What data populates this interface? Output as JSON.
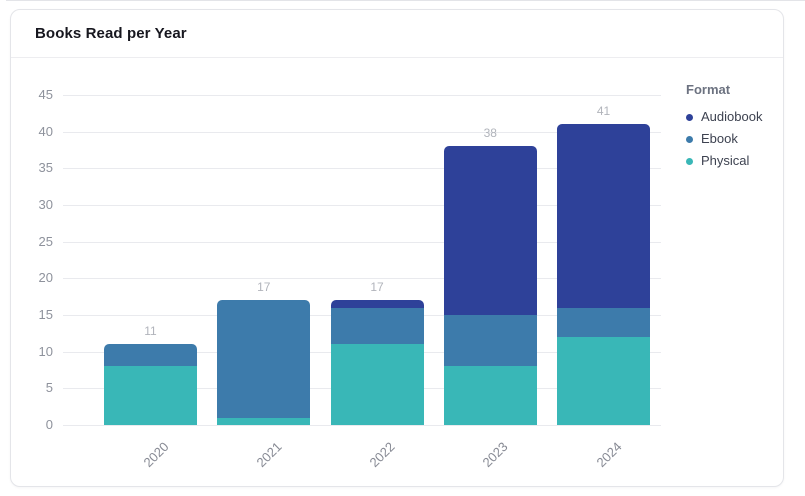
{
  "card": {
    "title": "Books Read per Year"
  },
  "legend": {
    "title": "Format",
    "items": [
      {
        "label": "Audiobook",
        "color": "#2e4199"
      },
      {
        "label": "Ebook",
        "color": "#3d7bab"
      },
      {
        "label": "Physical",
        "color": "#39b7b7"
      }
    ]
  },
  "chart_data": {
    "type": "bar",
    "stacked": true,
    "title": "Books Read per Year",
    "categories": [
      "2020",
      "2021",
      "2022",
      "2023",
      "2024"
    ],
    "series": [
      {
        "name": "Physical",
        "color": "#39b7b7",
        "values": [
          8,
          1,
          11,
          8,
          12
        ]
      },
      {
        "name": "Ebook",
        "color": "#3d7bab",
        "values": [
          3,
          16,
          5,
          7,
          4
        ]
      },
      {
        "name": "Audiobook",
        "color": "#2e4199",
        "values": [
          0,
          0,
          1,
          23,
          25
        ]
      }
    ],
    "totals": [
      11,
      17,
      17,
      38,
      41
    ],
    "y_ticks": [
      0,
      5,
      10,
      15,
      20,
      25,
      30,
      35,
      40,
      45
    ],
    "ylim": [
      0,
      45
    ],
    "xlabel": "",
    "ylabel": "",
    "grid": true,
    "legend_position": "right",
    "colors": {
      "grid": "#e9eaee",
      "axis_text": "#8e929c",
      "value_label": "#b1b4bb"
    }
  }
}
